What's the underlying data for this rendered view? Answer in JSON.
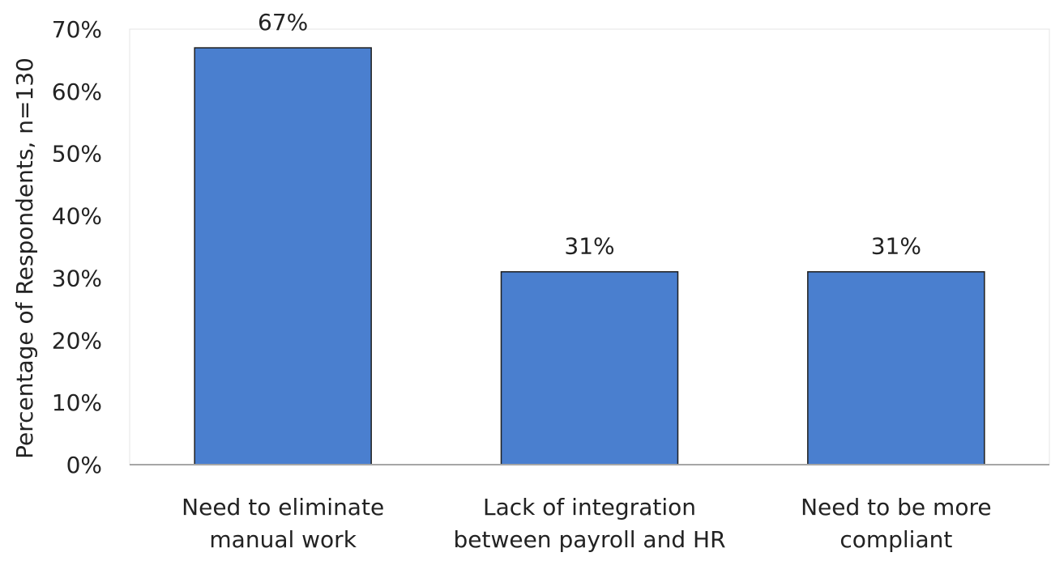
{
  "chart_data": {
    "type": "bar",
    "title": "",
    "xlabel": "",
    "ylabel": "Percentage of Respondents, n=130",
    "categories": [
      [
        "Need to eliminate",
        "manual work"
      ],
      [
        "Lack of integration",
        "between payroll and HR"
      ],
      [
        "Need to be more",
        "compliant"
      ]
    ],
    "values": [
      67,
      31,
      31
    ],
    "data_labels": [
      "67%",
      "31%",
      "31%"
    ],
    "ylim": [
      0,
      70
    ],
    "yticks": [
      0,
      10,
      20,
      30,
      40,
      50,
      60,
      70
    ],
    "ytick_labels": [
      "0%",
      "10%",
      "20%",
      "30%",
      "40%",
      "50%",
      "60%",
      "70%"
    ],
    "grid": false,
    "legend": "none",
    "bar_color": "#4a7fcf",
    "bar_edge_color": "#1f1f1f",
    "axis_color": "#a6a6a6"
  }
}
